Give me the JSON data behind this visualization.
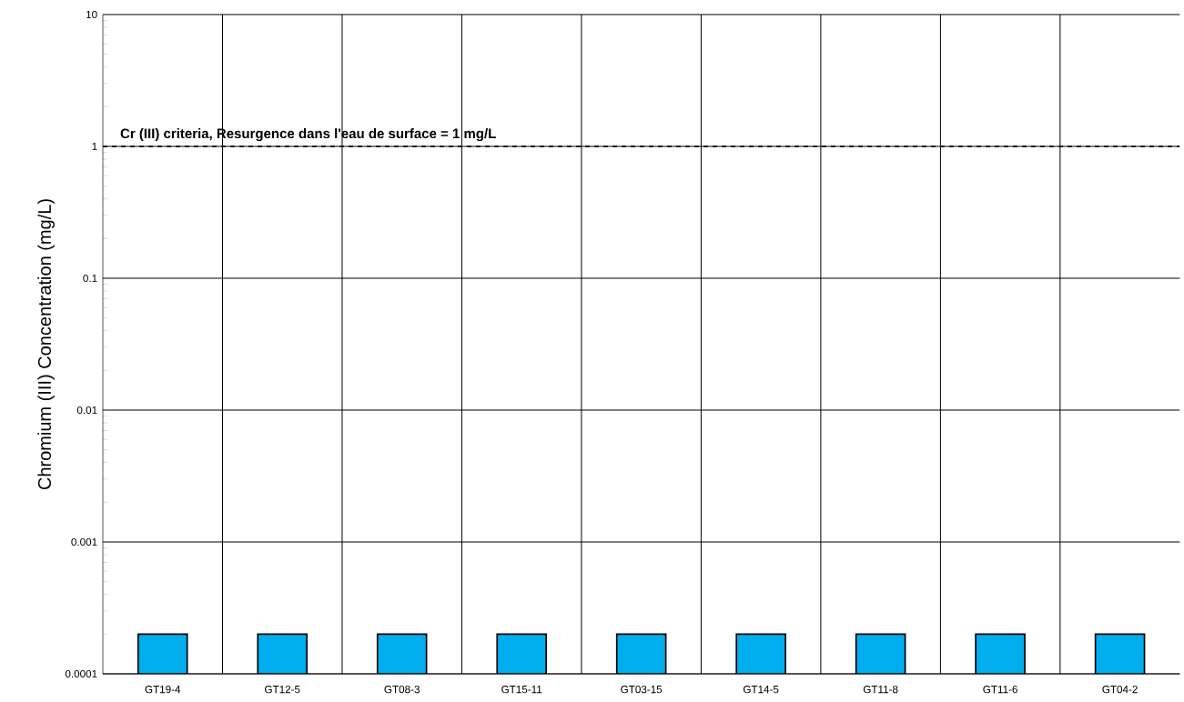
{
  "chart_data": {
    "type": "bar",
    "ylabel": "Chromium (III) Concentration (mg/L)",
    "categories": [
      "GT19-4",
      "GT12-5",
      "GT08-3",
      "GT15-11",
      "GT03-15",
      "GT14-5",
      "GT11-8",
      "GT11-6",
      "GT04-2"
    ],
    "values": [
      0.0002,
      0.0002,
      0.0002,
      0.0002,
      0.0002,
      0.0002,
      0.0002,
      0.0002,
      0.0002
    ],
    "color": "#00aeef",
    "log": true,
    "ylim": [
      0.0001,
      10
    ],
    "yticks": [
      {
        "value": 0.0001,
        "label": "0.0001"
      },
      {
        "value": 0.001,
        "label": "0.001"
      },
      {
        "value": 0.01,
        "label": "0.01"
      },
      {
        "value": 0.1,
        "label": "0.1"
      },
      {
        "value": 1,
        "label": "1"
      },
      {
        "value": 10,
        "label": "10"
      }
    ],
    "grid": true,
    "ref_lines": [
      {
        "axis": "y",
        "value": 1,
        "label": "Cr (III) criteria, Resurgence dans l'eau de surface = 1 mg/L",
        "color": "#000000",
        "line_style": "dashed"
      }
    ]
  }
}
